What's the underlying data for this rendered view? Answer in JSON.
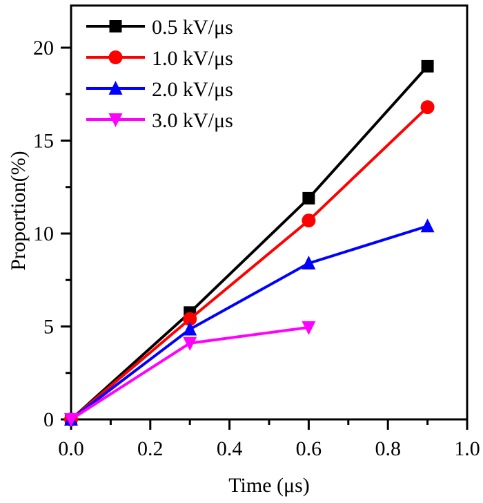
{
  "chart_data": {
    "type": "line",
    "title": "",
    "xlabel": "Time (μs)",
    "ylabel": "Proportion(%)",
    "xlim": [
      0,
      1.0
    ],
    "ylim": [
      0,
      22
    ],
    "x_ticks": [
      0.0,
      0.2,
      0.4,
      0.6,
      0.8,
      1.0
    ],
    "x_tick_labels": [
      "0.0",
      "0.2",
      "0.4",
      "0.6",
      "0.8",
      "1.0"
    ],
    "x_minor_ticks": [
      0.1,
      0.3,
      0.5,
      0.7,
      0.9
    ],
    "y_ticks": [
      0,
      5,
      10,
      15,
      20
    ],
    "y_tick_labels": [
      "0",
      "5",
      "10",
      "15",
      "20"
    ],
    "y_minor_ticks": [
      2.5,
      7.5,
      12.5,
      17.5
    ],
    "grid": false,
    "legend_position": "top-left",
    "series": [
      {
        "name": "0.5 kV/μs",
        "color": "#000000",
        "marker": "square",
        "x": [
          0,
          0.3,
          0.6,
          0.9
        ],
        "y": [
          0,
          5.75,
          11.9,
          19.0
        ]
      },
      {
        "name": "1.0 kV/μs",
        "color": "#ff0000",
        "marker": "circle",
        "x": [
          0,
          0.3,
          0.6,
          0.9
        ],
        "y": [
          0,
          5.4,
          10.7,
          16.8
        ]
      },
      {
        "name": "2.0 kV/μs",
        "color": "#0000ff",
        "marker": "triangle-up",
        "x": [
          0,
          0.3,
          0.6,
          0.9
        ],
        "y": [
          0,
          4.85,
          8.4,
          10.4
        ]
      },
      {
        "name": "3.0 kV/μs",
        "color": "#ff00ff",
        "marker": "triangle-down",
        "x": [
          0,
          0.3,
          0.6
        ],
        "y": [
          0,
          4.1,
          4.95
        ]
      }
    ]
  }
}
